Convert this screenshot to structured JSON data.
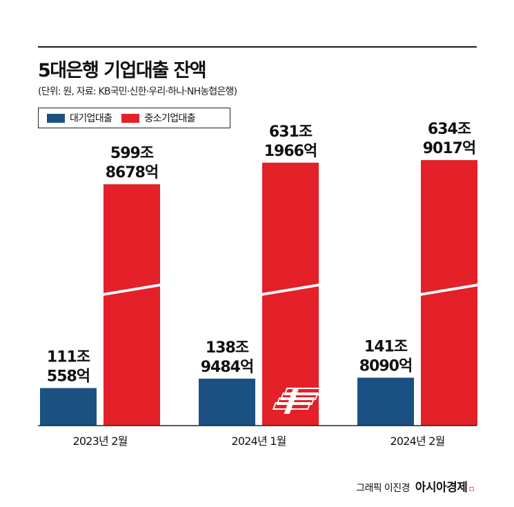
{
  "header": {
    "title": "5대은행 기업대출 잔액",
    "subtitle": "(단위: 원, 자료: KB국민·신한·우리·하나·NH농협은행)"
  },
  "legend": [
    {
      "label": "대기업대출",
      "color": "#1b5182"
    },
    {
      "label": "중소기업대출",
      "color": "#e42129"
    }
  ],
  "chart_data": {
    "type": "bar",
    "title": "5대은행 기업대출 잔액",
    "categories": [
      "2023년 2월",
      "2024년 1월",
      "2024년 2월"
    ],
    "series": [
      {
        "name": "대기업대출",
        "color": "#1b5182",
        "values": [
          111.0558,
          138.9484,
          141.809
        ],
        "labels": [
          [
            "111조",
            "558억"
          ],
          [
            "138조",
            "9484억"
          ],
          [
            "141조",
            "8090억"
          ]
        ]
      },
      {
        "name": "중소기업대출",
        "color": "#e42129",
        "values": [
          599.8678,
          631.1966,
          634.9017
        ],
        "labels": [
          [
            "599조",
            "8678억"
          ],
          [
            "631조",
            "1966억"
          ],
          [
            "634조",
            "9017억"
          ]
        ]
      }
    ],
    "unit": "조원",
    "axis_break": true,
    "ylabel": "",
    "xlabel": "",
    "grid": false,
    "legend_position": "top-left"
  },
  "credit": {
    "text": "그래픽 이진경",
    "brand": "아시아경제"
  }
}
